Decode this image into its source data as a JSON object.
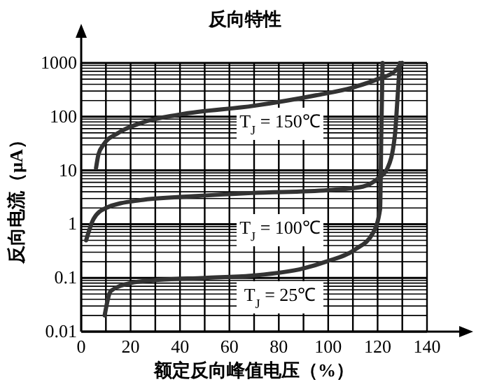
{
  "chart_data": {
    "type": "line",
    "title": "反向特性",
    "xlabel": "额定反向峰值电压（%）",
    "ylabel": "反向电流（μA）",
    "log": "y",
    "grid": true,
    "marker": "none",
    "line_style": "solid",
    "xlim": [
      0,
      140
    ],
    "xticks": [
      0,
      {
        "value": 10,
        "label": null
      },
      20,
      {
        "value": 30,
        "label": null
      },
      40,
      {
        "value": 50,
        "label": null
      },
      60,
      {
        "value": 70,
        "label": null
      },
      80,
      {
        "value": 90,
        "label": null
      },
      100,
      {
        "value": 110,
        "label": null
      },
      120,
      {
        "value": 130,
        "label": null
      },
      140
    ],
    "ylim": [
      0.01,
      1000
    ],
    "yticks": [
      0.01,
      {
        "value": 0.02,
        "label": null
      },
      {
        "value": 0.03,
        "label": null
      },
      {
        "value": 0.04,
        "label": null
      },
      {
        "value": 0.05,
        "label": null
      },
      {
        "value": 0.06,
        "label": null
      },
      {
        "value": 0.07,
        "label": null
      },
      {
        "value": 0.08,
        "label": null
      },
      {
        "value": 0.09,
        "label": null
      },
      0.1,
      {
        "value": 0.2,
        "label": null
      },
      {
        "value": 0.3,
        "label": null
      },
      {
        "value": 0.4,
        "label": null
      },
      {
        "value": 0.5,
        "label": null
      },
      {
        "value": 0.6,
        "label": null
      },
      {
        "value": 0.7,
        "label": null
      },
      {
        "value": 0.8,
        "label": null
      },
      {
        "value": 0.9,
        "label": null
      },
      1,
      {
        "value": 2,
        "label": null
      },
      {
        "value": 3,
        "label": null
      },
      {
        "value": 4,
        "label": null
      },
      {
        "value": 5,
        "label": null
      },
      {
        "value": 6,
        "label": null
      },
      {
        "value": 7,
        "label": null
      },
      {
        "value": 8,
        "label": null
      },
      {
        "value": 9,
        "label": null
      },
      10,
      {
        "value": 20,
        "label": null
      },
      {
        "value": 30,
        "label": null
      },
      {
        "value": 40,
        "label": null
      },
      {
        "value": 50,
        "label": null
      },
      {
        "value": 60,
        "label": null
      },
      {
        "value": 70,
        "label": null
      },
      {
        "value": 80,
        "label": null
      },
      {
        "value": 90,
        "label": null
      },
      100,
      {
        "value": 200,
        "label": null
      },
      {
        "value": 300,
        "label": null
      },
      {
        "value": 400,
        "label": null
      },
      {
        "value": 500,
        "label": null
      },
      {
        "value": 600,
        "label": null
      },
      {
        "value": 700,
        "label": null
      },
      {
        "value": 800,
        "label": null
      },
      {
        "value": 900,
        "label": null
      },
      1000
    ],
    "series": [
      {
        "color": "#333333",
        "x": [
          6,
          7,
          9,
          15,
          24,
          40,
          70,
          95,
          110,
          120,
          127,
          130
        ],
        "values": [
          11,
          20,
          30,
          50,
          76,
          110,
          160,
          250,
          350,
          500,
          700,
          1000
        ]
      },
      {
        "color": "#333333",
        "x": [
          2,
          5,
          10,
          24,
          45,
          69,
          100,
          114,
          120,
          124,
          127,
          128,
          129
        ],
        "values": [
          0.5,
          1.25,
          2,
          2.8,
          3.3,
          3.8,
          4.3,
          5,
          7,
          11,
          45,
          200,
          1000
        ]
      },
      {
        "color": "#333333",
        "x": [
          9.5,
          12,
          20,
          29,
          50,
          69,
          90,
          99,
          111,
          118,
          121,
          121.5,
          122
        ],
        "values": [
          0.02,
          0.057,
          0.08,
          0.09,
          0.1,
          0.11,
          0.15,
          0.2,
          0.34,
          0.67,
          1.9,
          50,
          1000
        ]
      }
    ],
    "annotations": [
      "T$_{J}$ = 150℃",
      "T$_{J}$ = 100℃",
      "T$_{J}$ = 25℃"
    ]
  }
}
